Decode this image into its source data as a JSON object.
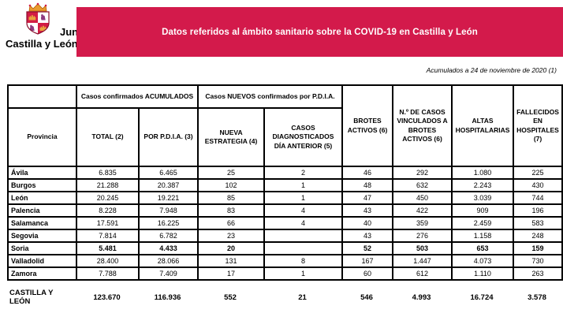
{
  "logo": {
    "line1": "Junta de",
    "line2": "Castilla y León"
  },
  "banner": {
    "title": "Datos referidos al ámbito sanitario sobre la COVID-19 en Castilla y León",
    "bg_color": "#d31a4b",
    "text_color": "#ffffff"
  },
  "note": "Acumulados a 24 de noviembre de 2020 (1)",
  "table": {
    "group_headers": [
      "Casos confirmados ACUMULADOS",
      "Casos NUEVOS confirmados por P.D.I.A."
    ],
    "columns": [
      "Provincia",
      "TOTAL (2)",
      "POR P.D.I.A. (3)",
      "NUEVA ESTRATEGIA (4)",
      "CASOS DIAGNOSTICADOS DÍA ANTERIOR (5)",
      "BROTES ACTIVOS (6)",
      "N.º DE CASOS VINCULADOS A BROTES ACTIVOS (6)",
      "ALTAS HOSPITALARIAS",
      "FALLECIDOS EN HOSPITALES (7)"
    ],
    "rows": [
      {
        "provincia": "Ávila",
        "values": [
          "6.835",
          "6.465",
          "25",
          "2",
          "46",
          "292",
          "1.080",
          "225"
        ],
        "bold": false
      },
      {
        "provincia": "Burgos",
        "values": [
          "21.288",
          "20.387",
          "102",
          "1",
          "48",
          "632",
          "2.243",
          "430"
        ],
        "bold": false
      },
      {
        "provincia": "León",
        "values": [
          "20.245",
          "19.221",
          "85",
          "1",
          "47",
          "450",
          "3.039",
          "744"
        ],
        "bold": false
      },
      {
        "provincia": "Palencia",
        "values": [
          "8.228",
          "7.948",
          "83",
          "4",
          "43",
          "422",
          "909",
          "196"
        ],
        "bold": false
      },
      {
        "provincia": "Salamanca",
        "values": [
          "17.591",
          "16.225",
          "66",
          "4",
          "40",
          "359",
          "2.459",
          "583"
        ],
        "bold": false
      },
      {
        "provincia": "Segovia",
        "values": [
          "7.814",
          "6.782",
          "23",
          "",
          "43",
          "276",
          "1.158",
          "248"
        ],
        "bold": false
      },
      {
        "provincia": "Soria",
        "values": [
          "5.481",
          "4.433",
          "20",
          "",
          "52",
          "503",
          "653",
          "159"
        ],
        "bold": true
      },
      {
        "provincia": "Valladolid",
        "values": [
          "28.400",
          "28.066",
          "131",
          "8",
          "167",
          "1.447",
          "4.073",
          "730"
        ],
        "bold": false
      },
      {
        "provincia": "Zamora",
        "values": [
          "7.788",
          "7.409",
          "17",
          "1",
          "60",
          "612",
          "1.110",
          "263"
        ],
        "bold": false
      }
    ],
    "total_row": {
      "provincia": "CASTILLA Y LEÓN",
      "values": [
        "123.670",
        "116.936",
        "552",
        "21",
        "546",
        "4.993",
        "16.724",
        "3.578"
      ]
    }
  }
}
